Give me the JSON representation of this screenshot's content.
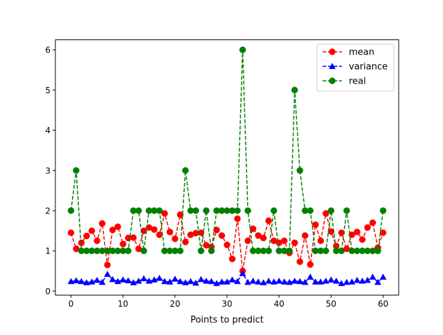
{
  "chart_data": {
    "type": "line",
    "xlabel": "Points to predict",
    "ylabel": "",
    "title": "",
    "xlim": [
      -3,
      63
    ],
    "ylim": [
      -0.1,
      6.25
    ],
    "xticks": [
      0,
      10,
      20,
      30,
      40,
      50,
      60
    ],
    "yticks": [
      0,
      1,
      2,
      3,
      4,
      5,
      6
    ],
    "grid": false,
    "legend_position": "top-right",
    "x": [
      0,
      1,
      2,
      3,
      4,
      5,
      6,
      7,
      8,
      9,
      10,
      11,
      12,
      13,
      14,
      15,
      16,
      17,
      18,
      19,
      20,
      21,
      22,
      23,
      24,
      25,
      26,
      27,
      28,
      29,
      30,
      31,
      32,
      33,
      34,
      35,
      36,
      37,
      38,
      39,
      40,
      41,
      42,
      43,
      44,
      45,
      46,
      47,
      48,
      49,
      50,
      51,
      52,
      53,
      54,
      55,
      56,
      57,
      58,
      59,
      60
    ],
    "series": [
      {
        "name": "mean",
        "color": "#ff0000",
        "marker": "circle",
        "values": [
          1.45,
          1.05,
          1.2,
          1.37,
          1.5,
          1.25,
          1.68,
          0.65,
          1.52,
          1.6,
          1.17,
          1.32,
          1.33,
          1.05,
          1.5,
          1.58,
          1.53,
          1.4,
          1.93,
          1.47,
          1.3,
          1.9,
          1.22,
          1.4,
          1.44,
          1.45,
          1.14,
          1.1,
          1.52,
          1.38,
          1.15,
          0.8,
          1.8,
          0.5,
          1.25,
          1.55,
          1.38,
          1.32,
          1.75,
          1.25,
          1.2,
          1.25,
          0.95,
          1.2,
          0.73,
          1.38,
          0.66,
          1.65,
          1.25,
          1.93,
          1.48,
          1.12,
          1.45,
          1.05,
          1.4,
          1.47,
          1.28,
          1.58,
          1.7,
          1.08,
          1.45
        ]
      },
      {
        "name": "variance",
        "color": "#0000ff",
        "marker": "triangle",
        "values": [
          0.24,
          0.26,
          0.24,
          0.21,
          0.23,
          0.27,
          0.22,
          0.42,
          0.29,
          0.24,
          0.28,
          0.26,
          0.21,
          0.25,
          0.31,
          0.25,
          0.28,
          0.32,
          0.24,
          0.23,
          0.3,
          0.24,
          0.21,
          0.24,
          0.2,
          0.29,
          0.25,
          0.24,
          0.19,
          0.23,
          0.23,
          0.28,
          0.24,
          0.44,
          0.22,
          0.25,
          0.23,
          0.21,
          0.25,
          0.23,
          0.25,
          0.23,
          0.22,
          0.25,
          0.24,
          0.22,
          0.35,
          0.23,
          0.23,
          0.25,
          0.28,
          0.25,
          0.19,
          0.22,
          0.23,
          0.27,
          0.25,
          0.27,
          0.35,
          0.22,
          0.35
        ]
      },
      {
        "name": "real",
        "color": "#008000",
        "marker": "circle",
        "values": [
          2,
          3,
          1,
          1,
          1,
          1,
          1,
          1,
          1,
          1,
          1,
          1,
          2,
          2,
          1,
          2,
          2,
          2,
          1,
          1,
          1,
          1,
          3,
          2,
          2,
          1,
          2,
          1,
          2,
          2,
          2,
          2,
          2,
          6,
          2,
          1,
          1,
          1,
          1,
          2,
          1,
          1,
          1,
          5,
          3,
          2,
          2,
          1,
          1,
          1,
          2,
          1,
          1,
          2,
          1,
          1,
          1,
          1,
          1,
          1,
          2
        ]
      }
    ]
  }
}
